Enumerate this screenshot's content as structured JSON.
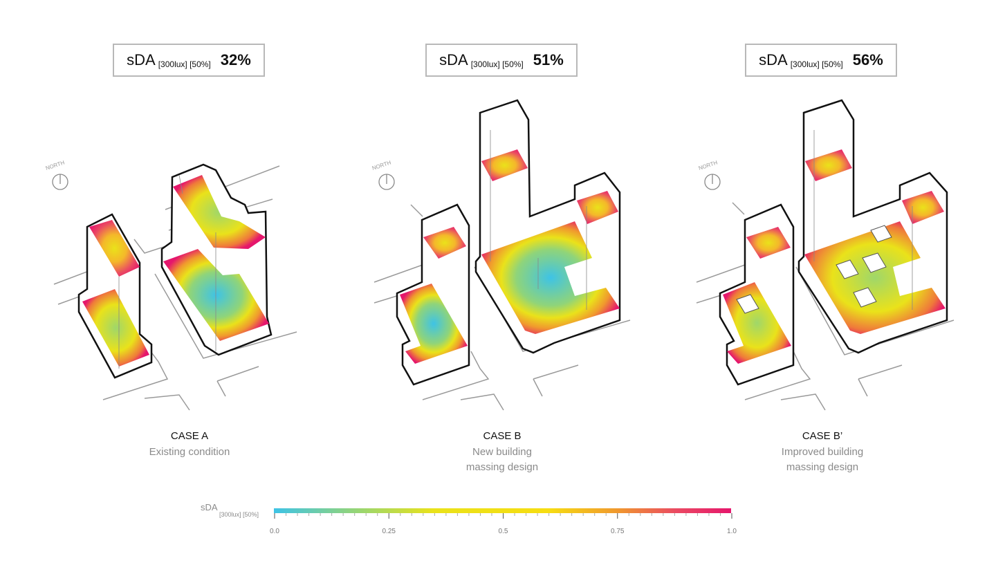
{
  "panels": [
    {
      "metric_label": "sDA",
      "metric_sub": "[300lux] [50%]",
      "metric_value": "32%",
      "case": "CASE A",
      "desc_line1": "Existing condition",
      "desc_line2": "",
      "north_label": "NORTH"
    },
    {
      "metric_label": "sDA",
      "metric_sub": "[300lux] [50%]",
      "metric_value": "51%",
      "case": "CASE B",
      "desc_line1": "New building",
      "desc_line2": "massing design",
      "north_label": "NORTH"
    },
    {
      "metric_label": "sDA",
      "metric_sub": "[300lux] [50%]",
      "metric_value": "56%",
      "case": "CASE B’",
      "desc_line1": "Improved building",
      "desc_line2": "massing design",
      "north_label": "NORTH"
    }
  ],
  "legend": {
    "label": "sDA",
    "sub_label": "[300lux] [50%]",
    "ticks": [
      "0.0",
      "0.25",
      "0.5",
      "0.75",
      "1.0"
    ],
    "colors": [
      "#3ec3e6",
      "#eae21a",
      "#e5166c"
    ]
  }
}
